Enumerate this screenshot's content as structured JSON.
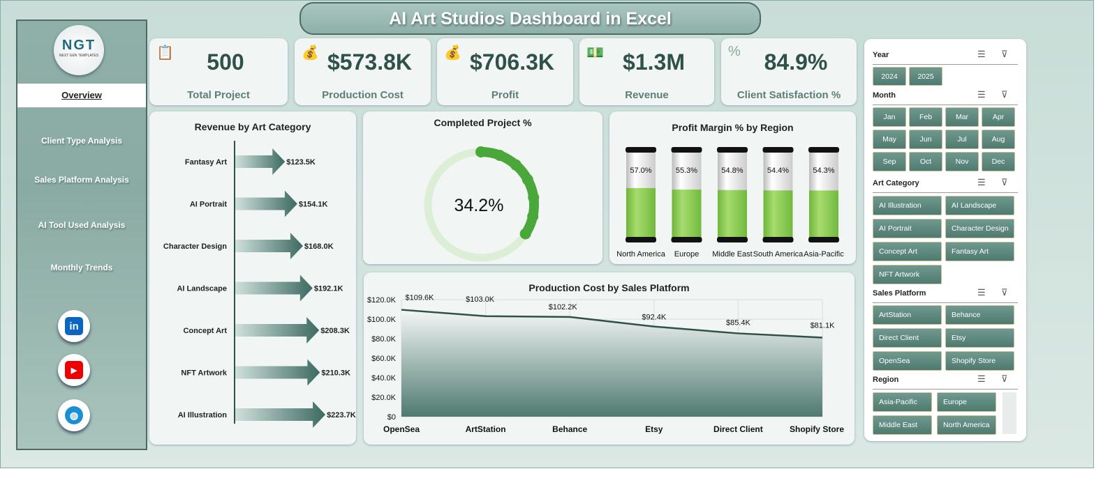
{
  "title": "AI Art Studios Dashboard in Excel",
  "logo": {
    "text": "NGT",
    "subtitle": "NEXT GEN TEMPLATES"
  },
  "nav": [
    "Overview",
    "Client Type Analysis",
    "Sales Platform Analysis",
    "AI Tool Used Analysis",
    "Monthly Trends"
  ],
  "social": [
    "linkedin-icon",
    "youtube-icon",
    "globe-icon"
  ],
  "kpis": [
    {
      "value": "500",
      "label": "Total Project",
      "icon": "clipboard-icon"
    },
    {
      "value": "$573.8K",
      "label": "Production Cost",
      "icon": "money-bag-icon"
    },
    {
      "value": "$706.3K",
      "label": "Profit",
      "icon": "money-bag-icon"
    },
    {
      "value": "$1.3M",
      "label": "Revenue",
      "icon": "money-icon"
    },
    {
      "value": "84.9%",
      "label": "Client Satisfaction %",
      "icon": "percent-icon"
    }
  ],
  "chart_data": [
    {
      "type": "bar",
      "title": "Revenue by Art Category",
      "categories": [
        "Fantasy Art",
        "AI Portrait",
        "Character Design",
        "AI Landscape",
        "Concept Art",
        "NFT Artwork",
        "AI Illustration"
      ],
      "values": [
        123.5,
        154.1,
        168.0,
        192.1,
        208.3,
        210.3,
        223.7
      ],
      "labels": [
        "$123.5K",
        "$154.1K",
        "$168.0K",
        "$192.1K",
        "$208.3K",
        "$210.3K",
        "$223.7K"
      ],
      "unit": "K",
      "color": "#4f7a70"
    },
    {
      "type": "pie",
      "title": "Completed Project %",
      "value": 34.2,
      "label": "34.2%",
      "colors": {
        "filled": "#4aa83a",
        "remaining": "#dcefd6"
      }
    },
    {
      "type": "bar",
      "title": "Profit Margin % by Region",
      "categories": [
        "North America",
        "Europe",
        "Middle East",
        "South America",
        "Asia-Pacific"
      ],
      "values": [
        57.0,
        55.3,
        54.8,
        54.4,
        54.3
      ],
      "labels": [
        "57.0%",
        "55.3%",
        "54.8%",
        "54.4%",
        "54.3%"
      ],
      "ylim": [
        0,
        100
      ],
      "color": "#8fcf55"
    },
    {
      "type": "area",
      "title": "Production Cost by Sales Platform",
      "categories": [
        "OpenSea",
        "ArtStation",
        "Behance",
        "Etsy",
        "Direct Client",
        "Shopify Store"
      ],
      "values": [
        109.6,
        103.0,
        102.2,
        92.4,
        85.4,
        81.1
      ],
      "labels": [
        "$109.6K",
        "$103.0K",
        "$102.2K",
        "$92.4K",
        "$85.4K",
        "$81.1K"
      ],
      "ylim": [
        0,
        120
      ],
      "yticks": [
        "$0",
        "$20.0K",
        "$40.0K",
        "$60.0K",
        "$80.0K",
        "$100.0K",
        "$120.0K"
      ],
      "grid": true,
      "color": "#4f7a70"
    }
  ],
  "slicers": [
    {
      "title": "Year",
      "items": [
        "2024",
        "2025"
      ]
    },
    {
      "title": "Month",
      "items": [
        "Jan",
        "Feb",
        "Mar",
        "Apr",
        "May",
        "Jun",
        "Jul",
        "Aug",
        "Sep",
        "Oct",
        "Nov",
        "Dec"
      ]
    },
    {
      "title": "Art Category",
      "items": [
        "AI Illustration",
        "AI Landscape",
        "AI Portrait",
        "Character Design",
        "Concept Art",
        "Fantasy Art",
        "NFT Artwork"
      ]
    },
    {
      "title": "Sales Platform",
      "items": [
        "ArtStation",
        "Behance",
        "Direct Client",
        "Etsy",
        "OpenSea",
        "Shopify Store"
      ]
    },
    {
      "title": "Region",
      "items": [
        "Asia-Pacific",
        "Europe",
        "Middle East",
        "North America"
      ]
    }
  ]
}
